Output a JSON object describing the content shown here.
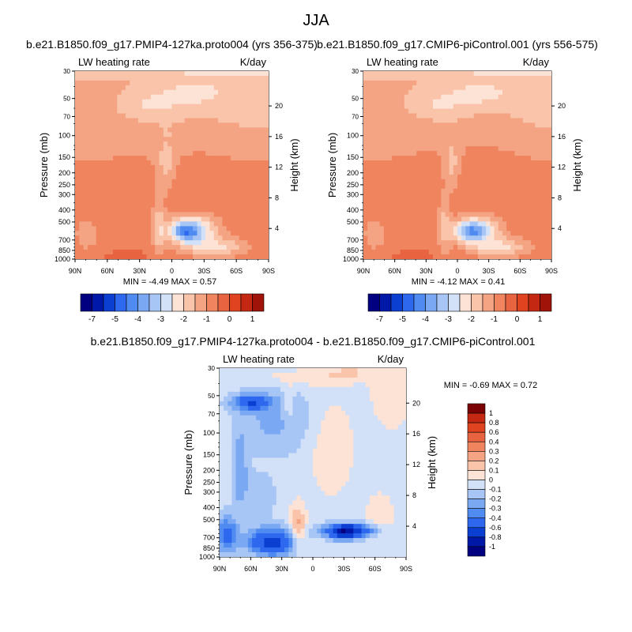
{
  "figure": {
    "title": "JJA"
  },
  "colors": {
    "neg": [
      "#000080",
      "#0018a8",
      "#0b3fd2",
      "#2d68ef",
      "#4f8bf0",
      "#7aa8f3",
      "#a8c6f5",
      "#d2e1f7"
    ],
    "pos": [
      "#fde3d6",
      "#f9c4aa",
      "#f4a483",
      "#ef845e",
      "#e86340",
      "#df4320",
      "#c52812",
      "#a01308",
      "#7a0204"
    ]
  },
  "chart_data": [
    {
      "id": "top-left",
      "type": "heatmap",
      "title": "b.e21.B1850.f09_g17.PMIP4-127ka.proto004 (yrs 356-375)",
      "left_label": "LW heating rate",
      "right_label": "K/day",
      "xlabel": "",
      "ylabel": "Pressure (mb)",
      "y2label": "Height (km)",
      "x_ticks": [
        "90N",
        "60N",
        "30N",
        "0",
        "30S",
        "60S",
        "90S"
      ],
      "x_range": [
        90,
        -90
      ],
      "y_ticks": [
        30,
        50,
        70,
        100,
        150,
        200,
        250,
        300,
        400,
        500,
        700,
        850,
        1000
      ],
      "y_range": [
        1000,
        30
      ],
      "y2_ticks": [
        20,
        16,
        12,
        8,
        4
      ],
      "min_label": "MIN =  -4.49   MAX =   0.57",
      "min": -4.49,
      "max": 0.57,
      "bar_levels": [
        "-7",
        "-5",
        "-4",
        "-3",
        "-2",
        "-1",
        "0",
        "1"
      ],
      "colorbar_orientation": "horizontal",
      "field": "tl"
    },
    {
      "id": "top-right",
      "type": "heatmap",
      "title": "b.e21.B1850.f09_g17.CMIP6-piControl.001 (yrs 556-575)",
      "left_label": "LW heating rate",
      "right_label": "K/day",
      "xlabel": "",
      "ylabel": "Pressure (mb)",
      "y2label": "Height (km)",
      "x_ticks": [
        "90N",
        "60N",
        "30N",
        "0",
        "30S",
        "60S",
        "90S"
      ],
      "x_range": [
        90,
        -90
      ],
      "y_ticks": [
        30,
        50,
        70,
        100,
        150,
        200,
        250,
        300,
        400,
        500,
        700,
        850,
        1000
      ],
      "y_range": [
        1000,
        30
      ],
      "y2_ticks": [
        20,
        16,
        12,
        8,
        4
      ],
      "min_label": "MIN =  -4.12   MAX =   0.41",
      "min": -4.12,
      "max": 0.41,
      "bar_levels": [
        "-7",
        "-5",
        "-4",
        "-3",
        "-2",
        "-1",
        "0",
        "1"
      ],
      "colorbar_orientation": "horizontal",
      "field": "tr"
    },
    {
      "id": "difference",
      "type": "heatmap",
      "title": "b.e21.B1850.f09_g17.PMIP4-127ka.proto004 - b.e21.B1850.f09_g17.CMIP6-piControl.001",
      "left_label": "LW heating rate",
      "right_label": "K/day",
      "xlabel": "",
      "ylabel": "Pressure (mb)",
      "y2label": "Height (km)",
      "x_ticks": [
        "90N",
        "60N",
        "30N",
        "0",
        "30S",
        "60S",
        "90S"
      ],
      "x_range": [
        90,
        -90
      ],
      "y_ticks": [
        30,
        50,
        70,
        100,
        150,
        200,
        250,
        300,
        400,
        500,
        700,
        850,
        1000
      ],
      "y_range": [
        1000,
        30
      ],
      "y2_ticks": [
        20,
        16,
        12,
        8,
        4
      ],
      "min_label": "MIN =  -0.69   MAX =   0.72",
      "min": -0.69,
      "max": 0.72,
      "bar_levels": [
        "1",
        "0.8",
        "0.6",
        "0.4",
        "0.3",
        "0.2",
        "0.1",
        "0",
        "-0.1",
        "-0.2",
        "-0.3",
        "-0.4",
        "-0.6",
        "-0.8",
        "-1"
      ],
      "colorbar_orientation": "vertical",
      "field": "diff"
    }
  ]
}
